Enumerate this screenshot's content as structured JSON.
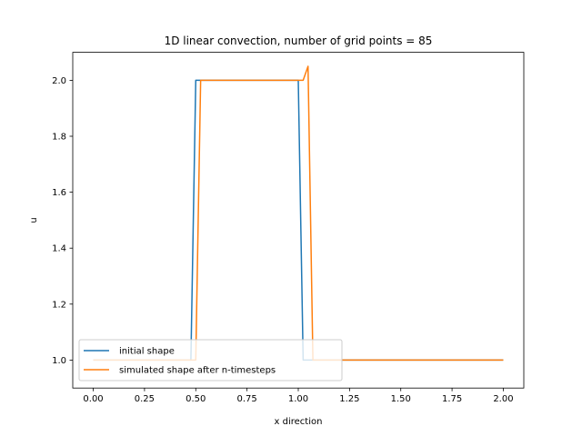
{
  "chart_data": {
    "type": "line",
    "title": "1D linear convection, number of grid points = 85",
    "xlabel": "x direction",
    "ylabel": "u",
    "xlim": [
      -0.1,
      2.1
    ],
    "ylim": [
      0.9,
      2.1
    ],
    "xticks": [
      "0.00",
      "0.25",
      "0.50",
      "0.75",
      "1.00",
      "1.25",
      "1.50",
      "1.75",
      "2.00"
    ],
    "yticks": [
      "1.0",
      "1.2",
      "1.4",
      "1.6",
      "1.8",
      "2.0"
    ],
    "grid": false,
    "legend_position": "lower-left",
    "series": [
      {
        "name": "initial shape",
        "color": "#1f77b4",
        "x": [
          0.0,
          0.4762,
          0.5,
          1.0,
          1.0238,
          2.0
        ],
        "y": [
          1.0,
          1.0,
          2.0,
          2.0,
          1.0,
          1.0
        ]
      },
      {
        "name": "simulated shape after n-timesteps",
        "color": "#ff7f0e",
        "x": [
          0.0,
          0.5,
          0.5238,
          1.0238,
          1.0476,
          1.0714,
          2.0
        ],
        "y": [
          1.0,
          1.0,
          2.0,
          2.0,
          2.05,
          1.0,
          1.0
        ]
      }
    ]
  }
}
